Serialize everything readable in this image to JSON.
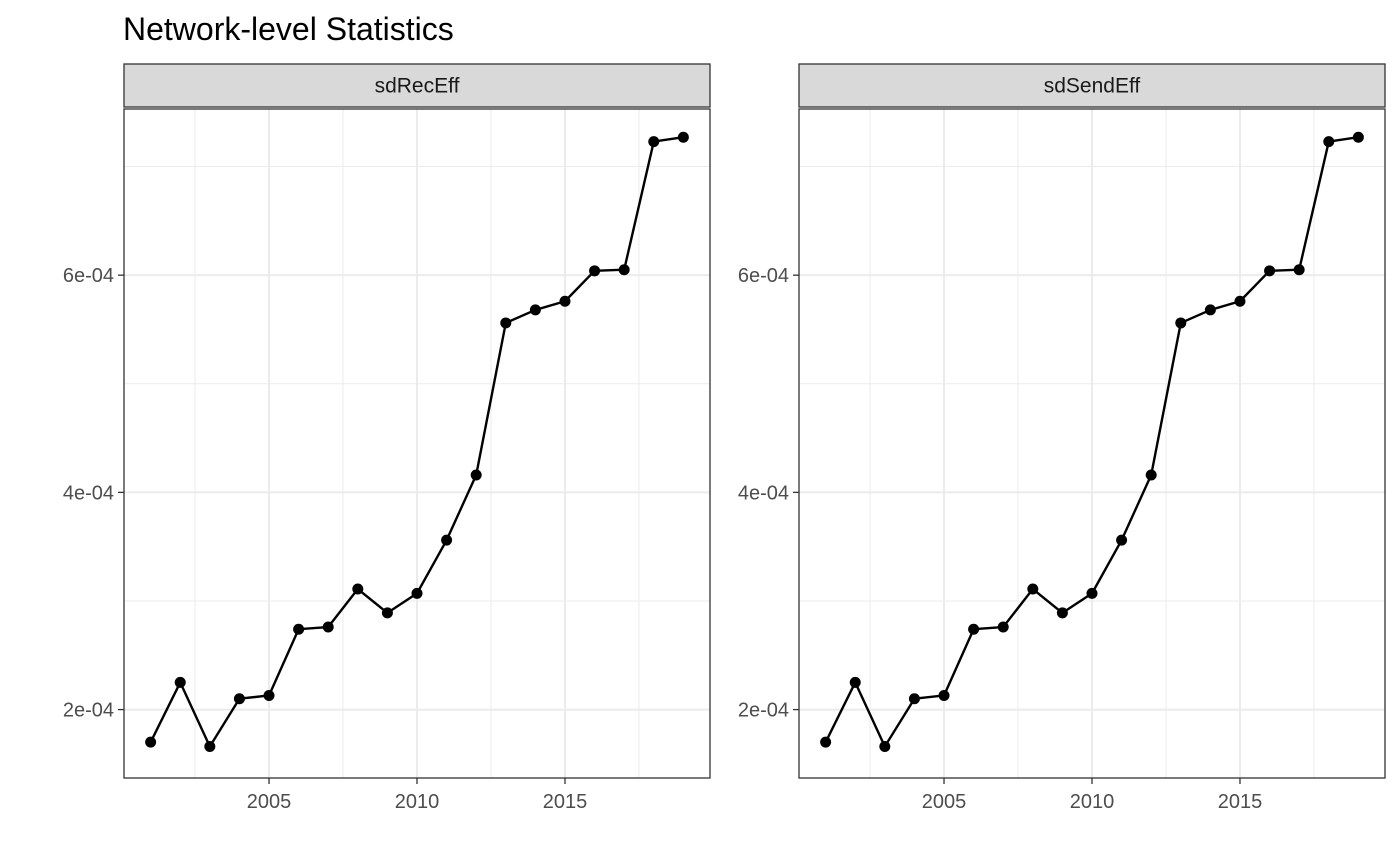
{
  "title": "Network-level Statistics",
  "chart_data": {
    "type": "line",
    "title": "Network-level Statistics",
    "xlabel": "",
    "ylabel": "",
    "xlim": [
      2000.1,
      2019.9
    ],
    "ylim": [
      0.000137,
      0.000753
    ],
    "x_ticks": [
      2005,
      2010,
      2015
    ],
    "x_tick_labels": [
      "2005",
      "2010",
      "2015"
    ],
    "y_ticks": [
      0.0002,
      0.0004,
      0.0006
    ],
    "y_tick_labels": [
      "2e-04",
      "4e-04",
      "6e-04"
    ],
    "y_minor_ticks": [
      0.0003,
      0.0005,
      0.0007
    ],
    "x_minor_ticks": [
      2002.5,
      2007.5,
      2012.5,
      2017.5
    ],
    "grid": true,
    "legend": "none",
    "colors": {
      "line": "#000000",
      "point": "#000000",
      "strip_fill": "#d9d9d9",
      "grid": "#ebebeb",
      "border": "#333333"
    },
    "panels": [
      {
        "strip_label": "sdRecEff",
        "x": [
          2001,
          2002,
          2003,
          2004,
          2005,
          2006,
          2007,
          2008,
          2009,
          2010,
          2011,
          2012,
          2013,
          2014,
          2015,
          2016,
          2017,
          2018,
          2019
        ],
        "y": [
          0.00017,
          0.000225,
          0.000166,
          0.00021,
          0.000213,
          0.000274,
          0.000276,
          0.000311,
          0.000289,
          0.000307,
          0.000356,
          0.000416,
          0.000556,
          0.000568,
          0.000576,
          0.000604,
          0.000605,
          0.000723,
          0.000727
        ]
      },
      {
        "strip_label": "sdSendEff",
        "x": [
          2001,
          2002,
          2003,
          2004,
          2005,
          2006,
          2007,
          2008,
          2009,
          2010,
          2011,
          2012,
          2013,
          2014,
          2015,
          2016,
          2017,
          2018,
          2019
        ],
        "y": [
          0.00017,
          0.000225,
          0.000166,
          0.00021,
          0.000213,
          0.000274,
          0.000276,
          0.000311,
          0.000289,
          0.000307,
          0.000356,
          0.000416,
          0.000556,
          0.000568,
          0.000576,
          0.000604,
          0.000605,
          0.000723,
          0.000727
        ]
      }
    ]
  }
}
